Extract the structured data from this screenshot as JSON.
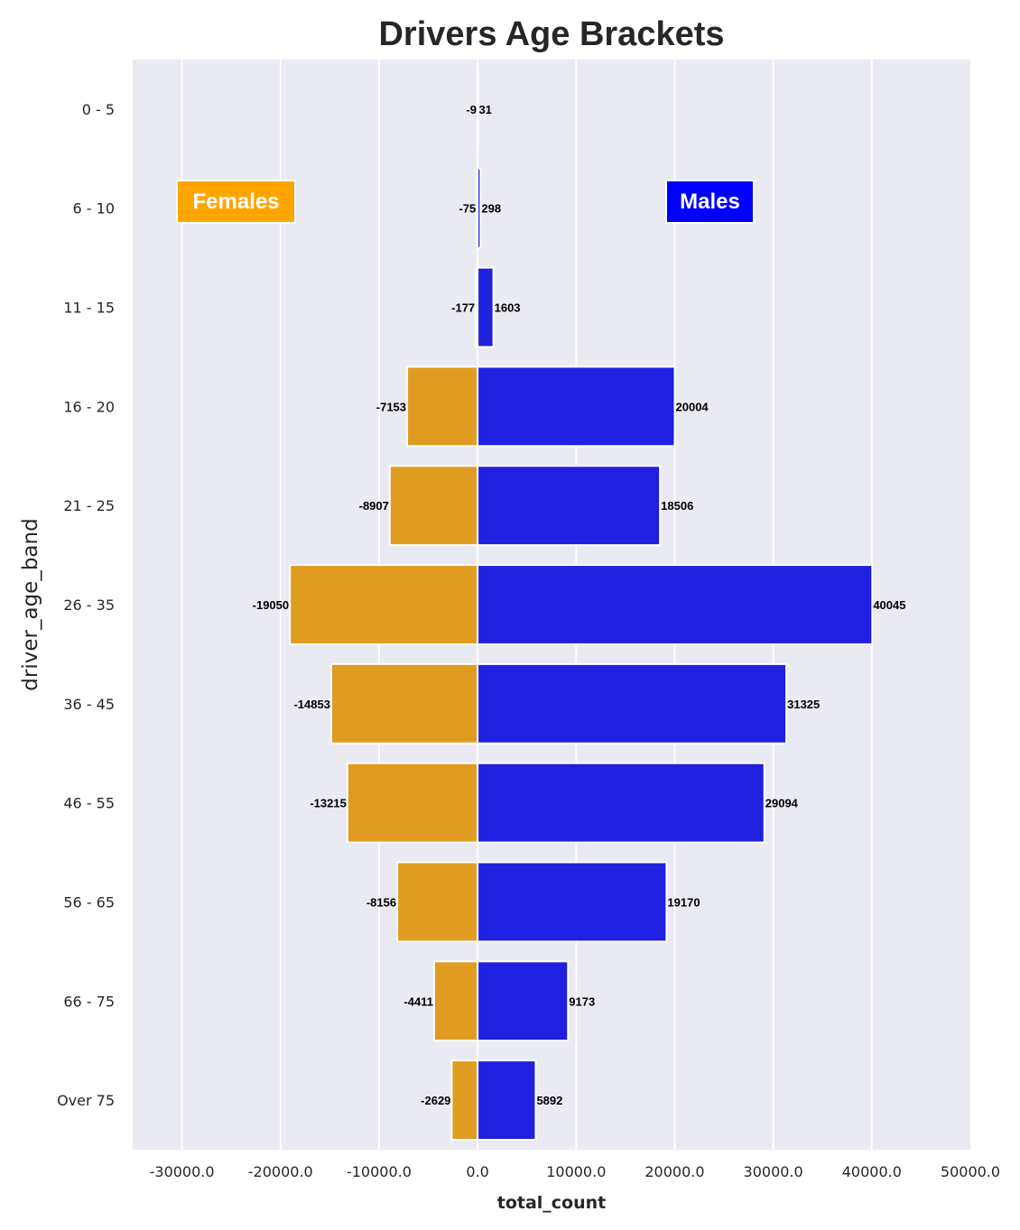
{
  "chart_data": {
    "type": "bar",
    "orientation": "horizontal",
    "title": "Drivers Age Brackets",
    "xlabel": "total_count",
    "ylabel": "driver_age_band",
    "xlim": [
      -35000,
      50000
    ],
    "x_ticks": [
      -30000,
      -20000,
      -10000,
      0,
      10000,
      20000,
      30000,
      40000,
      50000
    ],
    "x_tick_labels": [
      "-30000.0",
      "-20000.0",
      "-10000.0",
      "0.0",
      "10000.0",
      "20000.0",
      "30000.0",
      "40000.0",
      "50000.0"
    ],
    "grid": true,
    "categories": [
      "0 - 5",
      "6 - 10",
      "11 - 15",
      "16 - 20",
      "21 - 25",
      "26 - 35",
      "36 - 45",
      "46 - 55",
      "56 - 65",
      "66 - 75",
      "Over 75"
    ],
    "series": [
      {
        "name": "Females",
        "color": "#e09c20",
        "values": [
          -9,
          -75,
          -177,
          -7153,
          -8907,
          -19050,
          -14853,
          -13215,
          -8156,
          -4411,
          -2629
        ],
        "labels": [
          "-9",
          "-75",
          "-177",
          "-7153",
          "-8907",
          "-19050",
          "-14853",
          "-13215",
          "-8156",
          "-4411",
          "-2629"
        ]
      },
      {
        "name": "Males",
        "color": "#1f20e0",
        "values": [
          31,
          298,
          1603,
          20004,
          18506,
          40045,
          31325,
          29094,
          19170,
          9173,
          5892
        ],
        "labels": [
          "31",
          "298",
          "1603",
          "20004",
          "18506",
          "40045",
          "31325",
          "29094",
          "19170",
          "9173",
          "5892"
        ]
      }
    ],
    "annotations": [
      {
        "text": "Females",
        "background": "#ffa500",
        "position": "upper-left"
      },
      {
        "text": "Males",
        "background": "#0000ff",
        "position": "upper-right"
      }
    ]
  }
}
